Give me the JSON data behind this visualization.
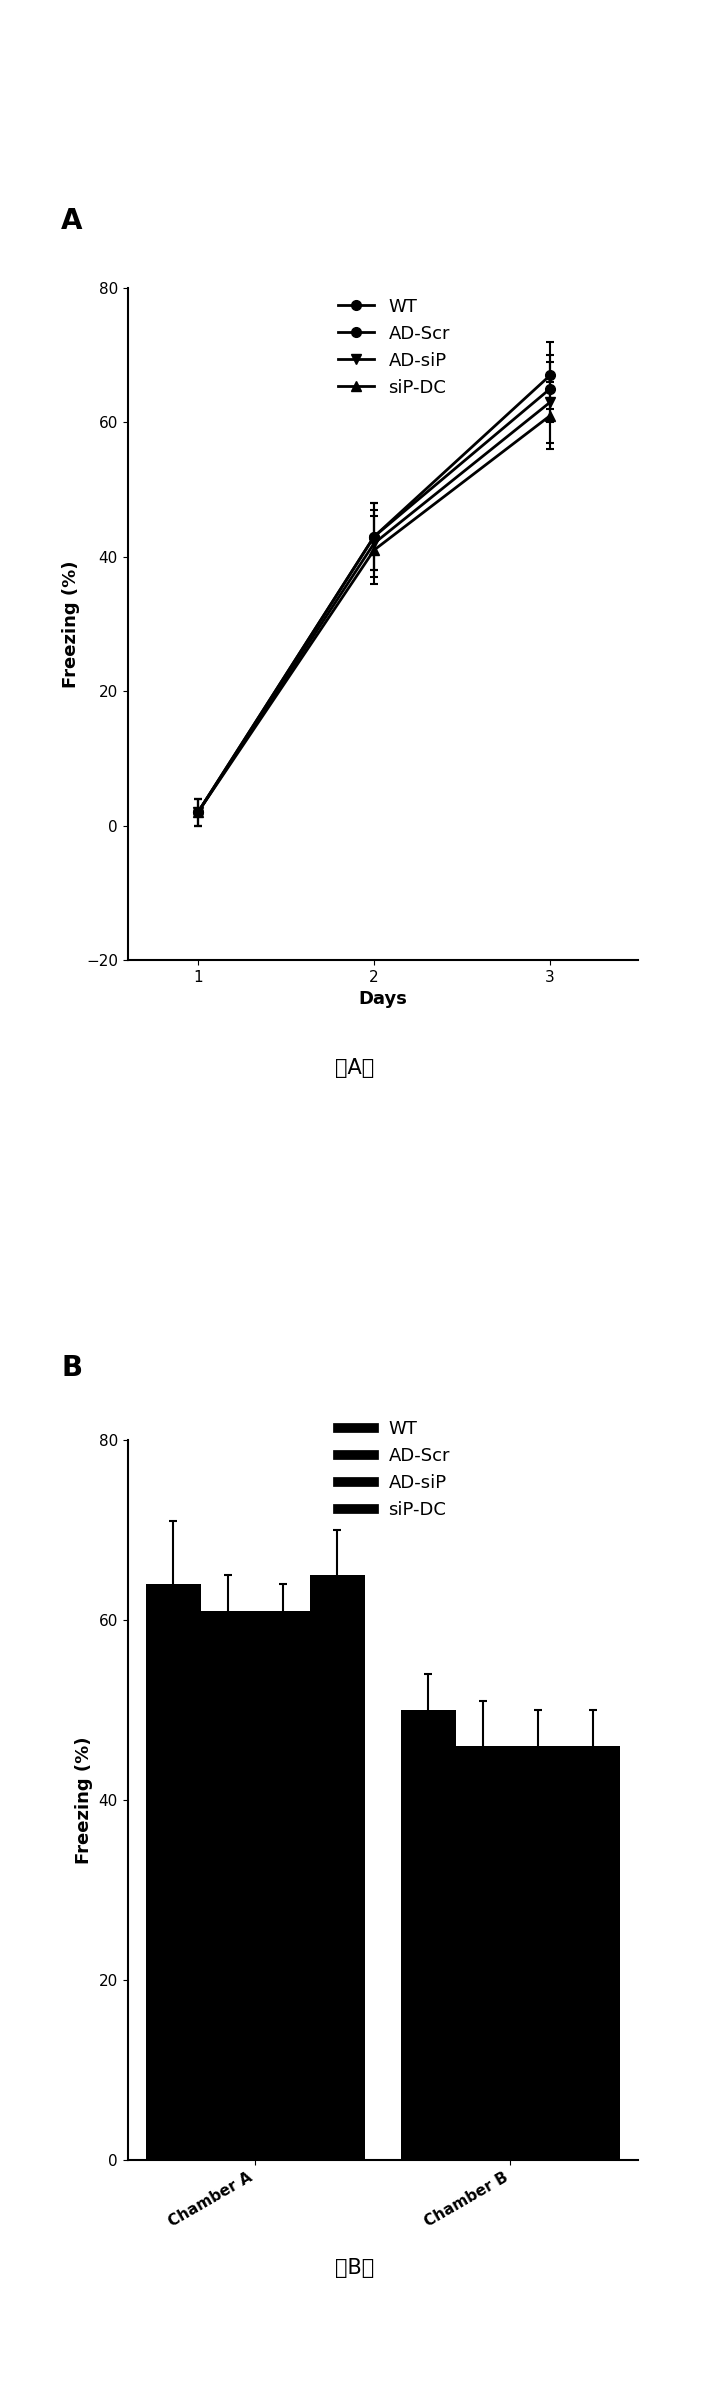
{
  "panel_A": {
    "label": "A",
    "days": [
      1,
      2,
      3
    ],
    "series": {
      "WT": {
        "values": [
          2,
          43,
          65
        ],
        "errors": [
          2,
          5,
          5
        ],
        "marker": "o"
      },
      "AD-Scr": {
        "values": [
          2,
          43,
          67
        ],
        "errors": [
          2,
          5,
          5
        ],
        "marker": "o"
      },
      "AD-siP": {
        "values": [
          2,
          42,
          63
        ],
        "errors": [
          2,
          5,
          6
        ],
        "marker": "v"
      },
      "siP-DC": {
        "values": [
          2,
          41,
          61
        ],
        "errors": [
          2,
          5,
          5
        ],
        "marker": "^"
      }
    },
    "legend_order": [
      "WT",
      "AD-Scr",
      "AD-siP",
      "siP-DC"
    ],
    "ylabel": "Freezing (%)",
    "xlabel": "Days",
    "ylim": [
      -20,
      80
    ],
    "yticks": [
      -20,
      0,
      20,
      40,
      60,
      80
    ],
    "xticks": [
      1,
      2,
      3
    ],
    "caption": "（A）"
  },
  "panel_B": {
    "label": "B",
    "groups": [
      "Chamber A",
      "Chamber B"
    ],
    "series_order": [
      "WT",
      "AD-Scr",
      "AD-siP",
      "siP-DC"
    ],
    "series": {
      "WT": {
        "values": [
          64,
          50
        ],
        "errors": [
          7,
          4
        ]
      },
      "AD-Scr": {
        "values": [
          61,
          46
        ],
        "errors": [
          4,
          5
        ]
      },
      "AD-siP": {
        "values": [
          61,
          46
        ],
        "errors": [
          3,
          4
        ]
      },
      "siP-DC": {
        "values": [
          65,
          46
        ],
        "errors": [
          5,
          4
        ]
      }
    },
    "legend_order": [
      "WT",
      "AD-Scr",
      "AD-siP",
      "siP-DC"
    ],
    "ylabel": "Freezing (%)",
    "ylim": [
      0,
      80
    ],
    "yticks": [
      0,
      20,
      40,
      60,
      80
    ],
    "caption": "（B）",
    "bar_width": 0.15
  },
  "figure_bg": "#ffffff",
  "line_color": "#000000",
  "bar_color": "#000000",
  "linewidth": 2.0,
  "markersize": 7,
  "fontsize_label": 13,
  "fontsize_tick": 11,
  "fontsize_caption": 15,
  "fontsize_panel": 20
}
